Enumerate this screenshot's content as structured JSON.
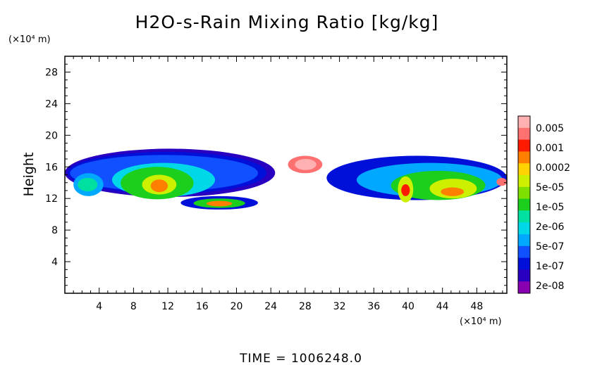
{
  "chart_data": {
    "type": "heatmap",
    "title": "H2O-s-Rain Mixing Ratio [kg/kg]",
    "ylabel": "Height",
    "xlabel": "",
    "y_unit": "(×10⁴ m)",
    "x_unit": "(×10⁴ m)",
    "xlim": [
      0,
      51.5
    ],
    "ylim": [
      0,
      30
    ],
    "x_ticks": [
      4,
      8,
      12,
      16,
      20,
      24,
      28,
      32,
      36,
      40,
      44,
      48
    ],
    "y_ticks": [
      4,
      8,
      12,
      16,
      20,
      24,
      28
    ],
    "footer": "TIME  =  1006248.0",
    "colorbar": {
      "labels": [
        "0.005",
        "0.001",
        "0.0002",
        "5e-05",
        "1e-05",
        "2e-06",
        "5e-07",
        "1e-07",
        "2e-08"
      ],
      "colors": [
        "#ffb0b0",
        "#ff7070",
        "#ff1a00",
        "#ff7f00",
        "#ffd200",
        "#ccf000",
        "#7fe000",
        "#1ccf1c",
        "#00e0a0",
        "#00d8e8",
        "#00a8ff",
        "#1050ff",
        "#0010d8",
        "#2a00c0",
        "#8800b0"
      ]
    },
    "regions": [
      {
        "band": 1,
        "x": [
          0,
          24.5
        ],
        "y": [
          12.2,
          18.3
        ],
        "cx": 11,
        "cy": 14.8
      },
      {
        "band": 2,
        "x": [
          0.3,
          23.5
        ],
        "y": [
          12.6,
          17.9
        ],
        "cx": 11,
        "cy": 14.8
      },
      {
        "band": 3,
        "x": [
          0.6,
          22.5
        ],
        "y": [
          12.9,
          17.5
        ],
        "cx": 10.5,
        "cy": 14.5
      },
      {
        "band": 5,
        "x": [
          5.5,
          17.5
        ],
        "y": [
          12.2,
          16.5
        ],
        "cx": 11,
        "cy": 14.2
      },
      {
        "band": 7,
        "x": [
          6.5,
          15
        ],
        "y": [
          11.9,
          16
        ],
        "cx": 11,
        "cy": 13.8
      },
      {
        "band": 9,
        "x": [
          9,
          13
        ],
        "y": [
          12.5,
          15
        ],
        "cx": 11,
        "cy": 13.6
      },
      {
        "band": 11,
        "x": [
          10,
          12
        ],
        "y": [
          12.8,
          14.4
        ],
        "cx": 11,
        "cy": 13.5
      },
      {
        "band": 4,
        "x": [
          1,
          4.5
        ],
        "y": [
          12.3,
          15.2
        ],
        "cx": 2.5,
        "cy": 13.6
      },
      {
        "band": 6,
        "x": [
          1.5,
          3.8
        ],
        "y": [
          12.9,
          14.6
        ],
        "cx": 2.5,
        "cy": 13.6
      },
      {
        "band": 2,
        "x": [
          13.5,
          22.5
        ],
        "y": [
          10.6,
          12.3
        ],
        "cx": 18,
        "cy": 11.3
      },
      {
        "band": 7,
        "x": [
          15,
          21
        ],
        "y": [
          10.8,
          12
        ],
        "cx": 18,
        "cy": 11.3
      },
      {
        "band": 11,
        "x": [
          16.5,
          19.5
        ],
        "y": [
          11,
          11.7
        ],
        "cx": 18,
        "cy": 11.3
      },
      {
        "band": 13,
        "x": [
          26,
          30
        ],
        "y": [
          15.2,
          17.4
        ],
        "cx": 28,
        "cy": 16.3
      },
      {
        "band": 14,
        "x": [
          26.8,
          29.3
        ],
        "y": [
          15.6,
          17
        ],
        "cx": 28,
        "cy": 16.3
      },
      {
        "band": 2,
        "x": [
          30.5,
          51.5
        ],
        "y": [
          11.8,
          17.4
        ],
        "cx": 42,
        "cy": 13.8
      },
      {
        "band": 4,
        "x": [
          34,
          51
        ],
        "y": [
          12.2,
          16.5
        ],
        "cx": 42,
        "cy": 13.5
      },
      {
        "band": 7,
        "x": [
          38,
          49
        ],
        "y": [
          11.8,
          15.5
        ],
        "cx": 43,
        "cy": 13.2
      },
      {
        "band": 9,
        "x": [
          38.8,
          40.6
        ],
        "y": [
          11.5,
          14.8
        ],
        "cx": 39.7,
        "cy": 13
      },
      {
        "band": 9,
        "x": [
          42.5,
          48
        ],
        "y": [
          12,
          14.5
        ],
        "cx": 45,
        "cy": 13
      },
      {
        "band": 11,
        "x": [
          43.8,
          46.5
        ],
        "y": [
          12.3,
          13.4
        ],
        "cx": 45,
        "cy": 12.8
      },
      {
        "band": 12,
        "x": [
          39.2,
          40.2
        ],
        "y": [
          12.3,
          13.8
        ],
        "cx": 39.7,
        "cy": 13
      },
      {
        "band": 13,
        "x": [
          50.3,
          51.5
        ],
        "y": [
          13.6,
          14.6
        ],
        "cx": 51,
        "cy": 14
      }
    ]
  }
}
